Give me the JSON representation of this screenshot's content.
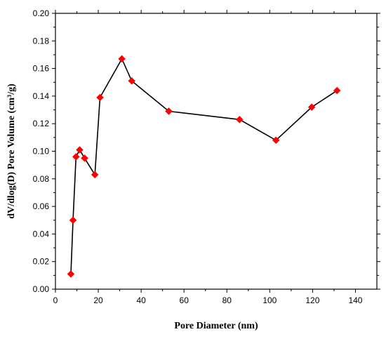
{
  "chart_data": {
    "type": "scatter",
    "title": "",
    "xlabel": "Pore Diameter (nm)",
    "ylabel": "dV/dlog(D) Pore Volume (cm³/g)",
    "xlim": [
      0,
      150
    ],
    "ylim": [
      0,
      0.2
    ],
    "x_ticks": [
      "0",
      "20",
      "40",
      "60",
      "80",
      "100",
      "120",
      "140"
    ],
    "x_tick_values": [
      0,
      20,
      40,
      60,
      80,
      100,
      120,
      140
    ],
    "y_ticks": [
      "0.00",
      "0.02",
      "0.04",
      "0.06",
      "0.08",
      "0.10",
      "0.12",
      "0.14",
      "0.16",
      "0.18",
      "0.20"
    ],
    "y_tick_values": [
      0,
      0.02,
      0.04,
      0.06,
      0.08,
      0.1,
      0.12,
      0.14,
      0.16,
      0.18,
      0.2
    ],
    "grid": false,
    "series": [
      {
        "marker": "diamond",
        "line": true,
        "marker_color": "#ff0000",
        "line_color": "#000000",
        "x": [
          7.2,
          8.2,
          9.6,
          11.3,
          13.6,
          18.4,
          20.8,
          31.0,
          35.6,
          52.9,
          85.9,
          102.9,
          119.6,
          131.4
        ],
        "y": [
          0.011,
          0.05,
          0.096,
          0.101,
          0.095,
          0.083,
          0.139,
          0.167,
          0.151,
          0.129,
          0.123,
          0.108,
          0.132,
          0.144
        ]
      }
    ]
  }
}
